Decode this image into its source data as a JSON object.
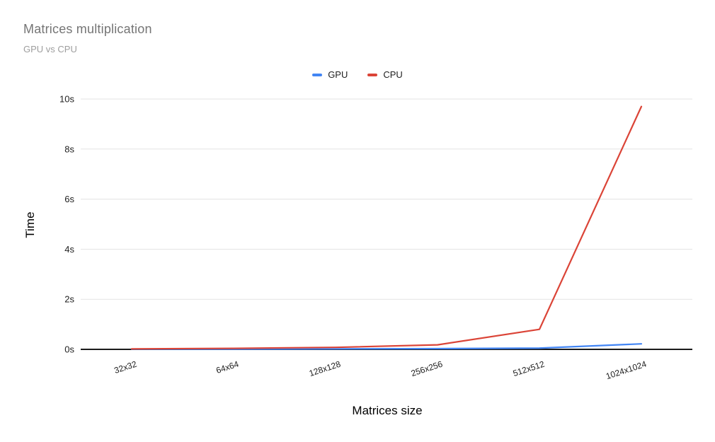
{
  "title": "Matrices multiplication",
  "subtitle": "GPU vs CPU",
  "legend": [
    {
      "label": "GPU",
      "color": "#4285F4"
    },
    {
      "label": "CPU",
      "color": "#DB4437"
    }
  ],
  "axes": {
    "x_label": "Matrices size",
    "y_label": "Time",
    "y_ticks": [
      "0s",
      "2s",
      "4s",
      "6s",
      "8s",
      "10s"
    ]
  },
  "colors": {
    "gridline": "#e3e3e3",
    "baseline": "#1a1a1a",
    "tick_text": "#212121"
  },
  "chart_data": {
    "type": "line",
    "categories": [
      "32x32",
      "64x64",
      "128x128",
      "256x256",
      "512x512",
      "1024x1024"
    ],
    "series": [
      {
        "name": "GPU",
        "color": "#4285F4",
        "values": [
          0.01,
          0.01,
          0.02,
          0.03,
          0.05,
          0.22
        ]
      },
      {
        "name": "CPU",
        "color": "#DB4437",
        "values": [
          0.02,
          0.04,
          0.08,
          0.18,
          0.8,
          9.7
        ]
      }
    ],
    "title": "Matrices multiplication",
    "subtitle": "GPU vs CPU",
    "xlabel": "Matrices size",
    "ylabel": "Time",
    "ylim": [
      0,
      10
    ],
    "y_tick_step": 2,
    "y_tick_suffix": "s",
    "grid": true,
    "legend_position": "top-center"
  }
}
